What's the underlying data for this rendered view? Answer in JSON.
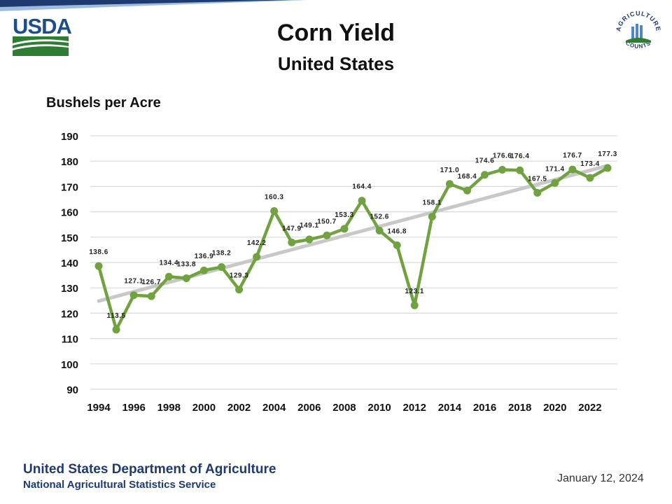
{
  "header": {
    "logo_text": "USDA",
    "badge_text_top": "AGRICULTURE",
    "badge_text_bottom": "COUNTS"
  },
  "footer": {
    "organization": "United States Department of Agriculture",
    "service": "National Agricultural Statistics Service",
    "date": "January 12, 2024"
  },
  "colors": {
    "series": "#70a340",
    "trend": "#c8c8c8",
    "grid": "#d9d9d9",
    "usda_blue": "#1a4f8b",
    "usda_green": "#2e7d32"
  },
  "chart_data": {
    "type": "line",
    "title": "Corn Yield",
    "subtitle": "United States",
    "ylabel": "Bushels per Acre",
    "xlabel": "",
    "ylim": [
      90,
      190
    ],
    "yticks": [
      90,
      100,
      110,
      120,
      130,
      140,
      150,
      160,
      170,
      180,
      190
    ],
    "xticks": [
      1994,
      1996,
      1998,
      2000,
      2002,
      2004,
      2006,
      2008,
      2010,
      2012,
      2014,
      2016,
      2018,
      2020,
      2022
    ],
    "grid": true,
    "series": [
      {
        "name": "Corn Yield",
        "x": [
          1994,
          1995,
          1996,
          1997,
          1998,
          1999,
          2000,
          2001,
          2002,
          2003,
          2004,
          2005,
          2006,
          2007,
          2008,
          2009,
          2010,
          2011,
          2012,
          2013,
          2014,
          2015,
          2016,
          2017,
          2018,
          2019,
          2020,
          2021,
          2022,
          2023
        ],
        "values": [
          138.6,
          113.5,
          127.1,
          126.7,
          134.4,
          133.8,
          136.9,
          138.2,
          129.3,
          142.2,
          160.3,
          147.9,
          149.1,
          150.7,
          153.3,
          164.4,
          152.6,
          146.8,
          123.1,
          158.1,
          171.0,
          168.4,
          174.6,
          176.6,
          176.4,
          167.5,
          171.4,
          176.7,
          173.4,
          177.3
        ],
        "labels": [
          "138.6",
          "113.5",
          "127.1",
          "126.7",
          "134.4",
          "133.8",
          "136.9",
          "138.2",
          "129.3",
          "142.2",
          "160.3",
          "147.9",
          "149.1",
          "150.7",
          "153.3",
          "164.4",
          "152.6",
          "146.8",
          "123.1",
          "158.1",
          "171.0",
          "168.4",
          "174.6",
          "176.6",
          "176.4",
          "167.5",
          "171.4",
          "176.7",
          "173.4",
          "177.3"
        ]
      }
    ],
    "trendline": {
      "x": [
        1994,
        2023
      ],
      "values": [
        124.8,
        178.2
      ]
    }
  }
}
